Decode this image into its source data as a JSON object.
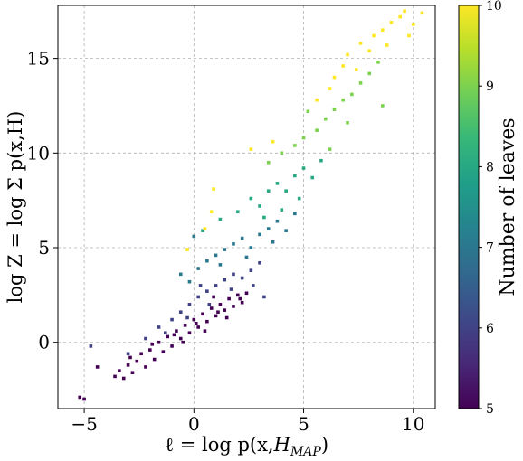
{
  "chart_data": {
    "type": "scatter",
    "title": "",
    "xlabel": "ℓ = log p(x,H_MAP)",
    "ylabel": "log Z = log Σ p(x,H)",
    "xlim": [
      -6.2,
      11.0
    ],
    "ylim": [
      -3.5,
      17.8
    ],
    "xticks": [
      -5,
      0,
      5,
      10
    ],
    "xtick_labels": [
      "−5",
      "0",
      "5",
      "10"
    ],
    "yticks": [
      0,
      5,
      10,
      15
    ],
    "ytick_labels": [
      "0",
      "5",
      "10",
      "15"
    ],
    "grid": true,
    "grid_style": "dashed",
    "colormap": "viridis",
    "color_variable": "Number of leaves",
    "colorbar": {
      "label": "Number of leaves",
      "range": [
        5,
        10
      ],
      "ticks": [
        5,
        6,
        7,
        8,
        9,
        10
      ],
      "tick_labels": [
        "5",
        "6",
        "7",
        "8",
        "9",
        "10"
      ],
      "colors": [
        "#440154",
        "#482878",
        "#3e4989",
        "#31688e",
        "#26828e",
        "#1f9e89",
        "#35b779",
        "#6ece58",
        "#b5de2b",
        "#fde725"
      ]
    },
    "series": [
      {
        "leaves": 5,
        "points": [
          [
            -5.2,
            -2.9
          ],
          [
            -5.0,
            -3.0
          ],
          [
            -4.4,
            -1.3
          ],
          [
            -3.6,
            -1.8
          ],
          [
            -3.4,
            -1.5
          ],
          [
            -3.2,
            -1.9
          ],
          [
            -3.0,
            -1.2
          ],
          [
            -2.8,
            -1.6
          ],
          [
            -2.6,
            -1.0
          ],
          [
            -2.4,
            -0.6
          ],
          [
            -2.2,
            -1.3
          ],
          [
            -2.0,
            -0.4
          ],
          [
            -1.8,
            -0.9
          ],
          [
            -1.6,
            0.0
          ],
          [
            -1.4,
            -0.5
          ],
          [
            -1.2,
            0.3
          ],
          [
            -1.0,
            -0.2
          ],
          [
            -0.8,
            0.6
          ],
          [
            -0.6,
            0.2
          ],
          [
            -0.4,
            0.9
          ],
          [
            -0.2,
            0.5
          ],
          [
            0.0,
            1.2
          ],
          [
            0.2,
            0.8
          ],
          [
            0.4,
            1.5
          ],
          [
            0.6,
            1.1
          ],
          [
            0.8,
            1.8
          ],
          [
            1.0,
            1.4
          ],
          [
            1.2,
            2.0
          ],
          [
            1.4,
            1.7
          ],
          [
            1.6,
            2.3
          ],
          [
            1.8,
            1.9
          ],
          [
            2.0,
            2.5
          ],
          [
            2.2,
            2.1
          ],
          [
            2.4,
            2.6
          ],
          [
            -2.9,
            -0.8
          ],
          [
            -1.9,
            -0.1
          ],
          [
            -0.9,
            0.4
          ],
          [
            0.1,
            1.0
          ],
          [
            1.1,
            1.6
          ],
          [
            2.1,
            2.3
          ],
          [
            0.5,
            0.6
          ],
          [
            -0.5,
            0.0
          ],
          [
            1.5,
            1.3
          ],
          [
            0.9,
            2.4
          ]
        ]
      },
      {
        "leaves": 6,
        "points": [
          [
            -4.7,
            -0.2
          ],
          [
            -3.0,
            -0.6
          ],
          [
            -2.2,
            0.2
          ],
          [
            -1.6,
            0.8
          ],
          [
            -1.0,
            1.2
          ],
          [
            -0.6,
            1.6
          ],
          [
            -0.2,
            2.0
          ],
          [
            0.2,
            2.4
          ],
          [
            0.6,
            2.7
          ],
          [
            1.0,
            3.0
          ],
          [
            1.4,
            3.3
          ],
          [
            1.8,
            3.6
          ],
          [
            2.2,
            3.4
          ],
          [
            2.6,
            3.8
          ],
          [
            3.0,
            4.2
          ],
          [
            -1.3,
            0.5
          ],
          [
            -0.3,
            1.3
          ],
          [
            0.7,
            2.0
          ],
          [
            1.7,
            2.8
          ],
          [
            2.7,
            3.0
          ],
          [
            3.2,
            2.4
          ],
          [
            0.3,
            3.0
          ]
        ]
      },
      {
        "leaves": 7,
        "points": [
          [
            -0.6,
            3.6
          ],
          [
            -0.2,
            3.2
          ],
          [
            0.2,
            3.9
          ],
          [
            0.6,
            4.3
          ],
          [
            1.0,
            4.6
          ],
          [
            1.4,
            4.9
          ],
          [
            1.8,
            5.2
          ],
          [
            2.2,
            5.5
          ],
          [
            2.6,
            5.0
          ],
          [
            3.0,
            5.7
          ],
          [
            3.4,
            6.0
          ],
          [
            3.8,
            6.4
          ],
          [
            4.2,
            5.9
          ],
          [
            4.6,
            6.8
          ],
          [
            0.0,
            5.6
          ],
          [
            1.2,
            4.1
          ],
          [
            2.4,
            4.5
          ],
          [
            3.6,
            5.3
          ]
        ]
      },
      {
        "leaves": 8,
        "points": [
          [
            0.4,
            5.9
          ],
          [
            1.2,
            6.5
          ],
          [
            2.0,
            6.9
          ],
          [
            2.6,
            7.6
          ],
          [
            3.0,
            7.2
          ],
          [
            3.4,
            8.0
          ],
          [
            3.8,
            8.4
          ],
          [
            4.2,
            8.0
          ],
          [
            4.6,
            8.8
          ],
          [
            5.0,
            9.2
          ],
          [
            5.4,
            8.7
          ],
          [
            5.8,
            9.6
          ],
          [
            4.0,
            7.0
          ],
          [
            3.2,
            6.6
          ],
          [
            4.8,
            7.6
          ]
        ]
      },
      {
        "leaves": 9,
        "points": [
          [
            3.4,
            9.5
          ],
          [
            4.0,
            10.0
          ],
          [
            4.6,
            10.4
          ],
          [
            5.0,
            10.8
          ],
          [
            5.6,
            11.2
          ],
          [
            6.0,
            11.8
          ],
          [
            6.4,
            12.3
          ],
          [
            6.8,
            12.8
          ],
          [
            7.2,
            13.1
          ],
          [
            7.6,
            13.7
          ],
          [
            8.0,
            14.2
          ],
          [
            8.6,
            12.5
          ],
          [
            7.0,
            11.6
          ],
          [
            6.2,
            10.2
          ],
          [
            8.4,
            14.8
          ],
          [
            5.2,
            12.2
          ]
        ]
      },
      {
        "leaves": 10,
        "points": [
          [
            0.5,
            6.0
          ],
          [
            0.8,
            6.9
          ],
          [
            -0.3,
            4.9
          ],
          [
            0.9,
            8.1
          ],
          [
            2.6,
            10.2
          ],
          [
            3.6,
            10.6
          ],
          [
            5.6,
            12.8
          ],
          [
            6.4,
            14.0
          ],
          [
            7.0,
            15.2
          ],
          [
            7.6,
            15.8
          ],
          [
            8.2,
            16.2
          ],
          [
            8.6,
            16.5
          ],
          [
            9.0,
            16.9
          ],
          [
            9.4,
            17.2
          ],
          [
            10.0,
            16.8
          ],
          [
            10.4,
            17.4
          ],
          [
            9.6,
            17.5
          ],
          [
            6.8,
            14.6
          ],
          [
            7.4,
            14.4
          ],
          [
            8.0,
            15.4
          ],
          [
            8.8,
            15.7
          ],
          [
            9.8,
            16.2
          ],
          [
            6.2,
            13.4
          ]
        ]
      }
    ]
  }
}
